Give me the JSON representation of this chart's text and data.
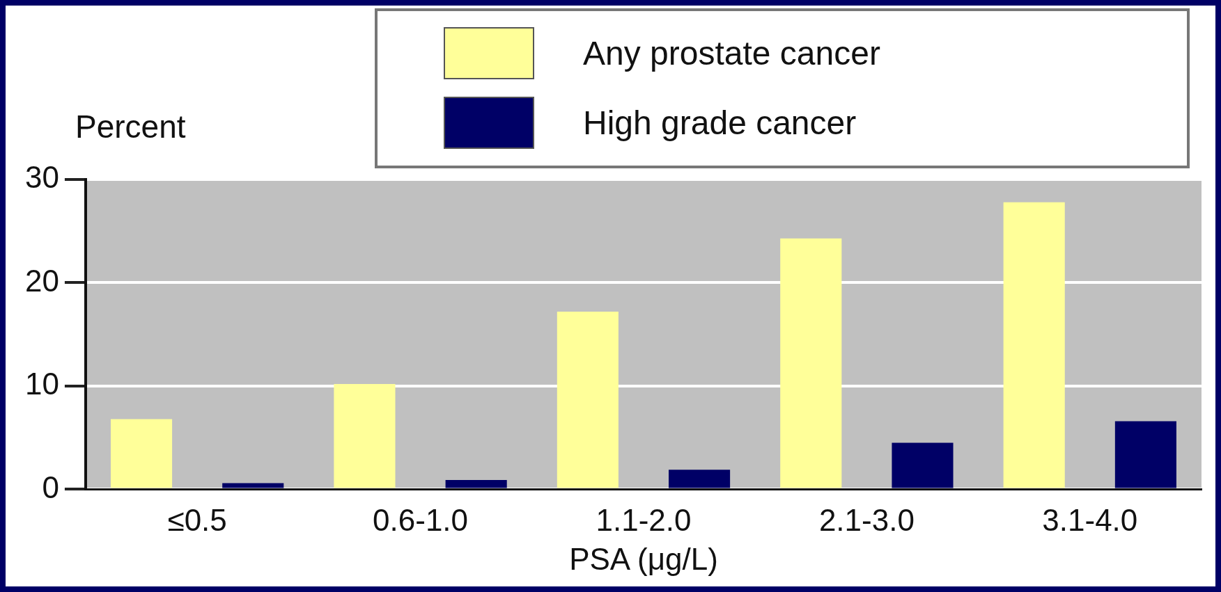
{
  "chart_data": {
    "type": "bar",
    "ylabel": "Percent",
    "xlabel": "PSA (μg/L)",
    "categories": [
      "≤0.5",
      "0.6-1.0",
      "1.1-2.0",
      "2.1-3.0",
      "3.1-4.0"
    ],
    "series": [
      {
        "name": "Any prostate cancer",
        "color": "#ffff99",
        "values": [
          6.8,
          10.2,
          17.2,
          24.3,
          27.8
        ]
      },
      {
        "name": "High grade cancer",
        "color": "#000066",
        "values": [
          0.6,
          0.9,
          1.9,
          4.5,
          6.6
        ]
      }
    ],
    "ylim": [
      0,
      30
    ],
    "yticks": [
      0,
      10,
      20,
      30
    ],
    "grid": "y",
    "legend": "top right"
  }
}
